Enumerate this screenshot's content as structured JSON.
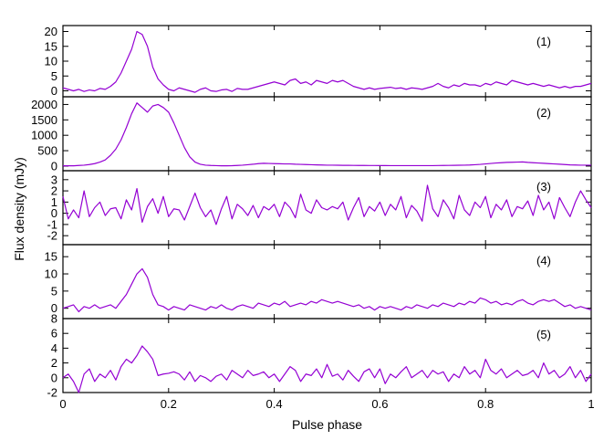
{
  "chart_data": {
    "type": "line",
    "xlabel": "Pulse phase",
    "ylabel": "Flux density (mJy)",
    "xlim": [
      0,
      1
    ],
    "x_ticks": [
      0,
      0.2,
      0.4,
      0.6,
      0.8,
      1
    ],
    "x_tick_labels": [
      "0",
      "0.2",
      "0.4",
      "0.6",
      "0.8",
      "1"
    ],
    "line_color": "#9400d3",
    "grid": false,
    "panels": [
      {
        "label": "(1)",
        "ylim": [
          -2,
          22
        ],
        "y_ticks": [
          0,
          5,
          10,
          15,
          20
        ],
        "y_tick_labels": [
          "0",
          "5",
          "10",
          "15",
          "20"
        ],
        "x": [
          0.0,
          0.01,
          0.02,
          0.03,
          0.04,
          0.05,
          0.06,
          0.07,
          0.08,
          0.09,
          0.1,
          0.11,
          0.12,
          0.13,
          0.14,
          0.15,
          0.16,
          0.17,
          0.18,
          0.19,
          0.2,
          0.21,
          0.22,
          0.23,
          0.24,
          0.25,
          0.26,
          0.27,
          0.28,
          0.29,
          0.3,
          0.31,
          0.32,
          0.33,
          0.34,
          0.35,
          0.36,
          0.37,
          0.38,
          0.39,
          0.4,
          0.41,
          0.42,
          0.43,
          0.44,
          0.45,
          0.46,
          0.47,
          0.48,
          0.49,
          0.5,
          0.51,
          0.52,
          0.53,
          0.54,
          0.55,
          0.56,
          0.57,
          0.58,
          0.59,
          0.6,
          0.61,
          0.62,
          0.63,
          0.64,
          0.65,
          0.66,
          0.67,
          0.68,
          0.69,
          0.7,
          0.71,
          0.72,
          0.73,
          0.74,
          0.75,
          0.76,
          0.77,
          0.78,
          0.79,
          0.8,
          0.81,
          0.82,
          0.83,
          0.84,
          0.85,
          0.86,
          0.87,
          0.88,
          0.89,
          0.9,
          0.91,
          0.92,
          0.93,
          0.94,
          0.95,
          0.96,
          0.97,
          0.98,
          0.99,
          1.0
        ],
        "y": [
          1.0,
          0.5,
          0.0,
          0.5,
          -0.2,
          0.3,
          0.0,
          0.8,
          0.5,
          1.5,
          3.0,
          6.0,
          10.0,
          14.0,
          20.0,
          19.0,
          15.0,
          8.0,
          4.0,
          2.0,
          0.5,
          0.0,
          1.0,
          0.5,
          0.0,
          -0.5,
          0.5,
          1.0,
          0.0,
          -0.2,
          0.3,
          0.5,
          -0.2,
          0.8,
          0.5,
          0.5,
          1.0,
          1.5,
          2.0,
          2.5,
          3.0,
          2.5,
          2.0,
          3.5,
          4.0,
          2.5,
          3.0,
          2.0,
          3.5,
          3.0,
          2.5,
          3.5,
          3.0,
          3.5,
          2.5,
          1.5,
          1.0,
          0.5,
          1.0,
          0.5,
          0.8,
          1.0,
          1.2,
          0.8,
          1.0,
          0.5,
          1.0,
          0.8,
          0.5,
          1.0,
          1.5,
          2.5,
          1.5,
          1.0,
          2.0,
          1.5,
          2.5,
          2.0,
          2.0,
          1.5,
          2.5,
          2.0,
          3.0,
          2.5,
          2.0,
          3.5,
          3.0,
          2.5,
          2.0,
          2.5,
          2.0,
          1.5,
          2.0,
          1.5,
          1.0,
          1.5,
          1.0,
          1.5,
          1.5,
          2.0,
          2.5
        ]
      },
      {
        "label": "(2)",
        "ylim": [
          -150,
          2250
        ],
        "y_ticks": [
          0,
          500,
          1000,
          1500,
          2000
        ],
        "y_tick_labels": [
          "0",
          "500",
          "1000",
          "1500",
          "2000"
        ],
        "x": [
          0.0,
          0.01,
          0.02,
          0.03,
          0.04,
          0.05,
          0.06,
          0.07,
          0.08,
          0.09,
          0.1,
          0.11,
          0.12,
          0.13,
          0.14,
          0.15,
          0.16,
          0.17,
          0.18,
          0.19,
          0.2,
          0.21,
          0.22,
          0.23,
          0.24,
          0.25,
          0.26,
          0.27,
          0.28,
          0.29,
          0.3,
          0.31,
          0.32,
          0.33,
          0.34,
          0.35,
          0.36,
          0.37,
          0.38,
          0.39,
          0.4,
          0.41,
          0.42,
          0.43,
          0.44,
          0.45,
          0.46,
          0.47,
          0.48,
          0.49,
          0.5,
          0.51,
          0.52,
          0.53,
          0.54,
          0.55,
          0.56,
          0.57,
          0.58,
          0.59,
          0.6,
          0.61,
          0.62,
          0.63,
          0.64,
          0.65,
          0.66,
          0.67,
          0.68,
          0.69,
          0.7,
          0.71,
          0.72,
          0.73,
          0.74,
          0.75,
          0.76,
          0.77,
          0.78,
          0.79,
          0.8,
          0.81,
          0.82,
          0.83,
          0.84,
          0.85,
          0.86,
          0.87,
          0.88,
          0.89,
          0.9,
          0.91,
          0.92,
          0.93,
          0.94,
          0.95,
          0.96,
          0.97,
          0.98,
          0.99,
          1.0
        ],
        "y": [
          10,
          10,
          10,
          20,
          30,
          50,
          80,
          130,
          200,
          350,
          550,
          850,
          1250,
          1700,
          2050,
          1900,
          1750,
          1950,
          2000,
          1900,
          1750,
          1400,
          1000,
          600,
          300,
          130,
          60,
          30,
          20,
          15,
          10,
          10,
          12,
          20,
          30,
          45,
          60,
          80,
          90,
          85,
          80,
          75,
          70,
          70,
          60,
          55,
          50,
          45,
          40,
          35,
          30,
          30,
          28,
          25,
          25,
          22,
          20,
          20,
          18,
          18,
          17,
          16,
          15,
          15,
          15,
          15,
          15,
          15,
          15,
          15,
          15,
          18,
          20,
          22,
          25,
          28,
          30,
          35,
          45,
          55,
          70,
          85,
          100,
          110,
          120,
          125,
          130,
          135,
          120,
          110,
          100,
          90,
          80,
          70,
          60,
          50,
          40,
          35,
          30,
          30,
          30
        ]
      },
      {
        "label": "(3)",
        "ylim": [
          -2.8,
          3.8
        ],
        "y_ticks": [
          -2,
          -1,
          0,
          1,
          2,
          3
        ],
        "y_tick_labels": [
          "-2",
          "-1",
          "0",
          "1",
          "2",
          "3"
        ],
        "x": [
          0.0,
          0.01,
          0.02,
          0.03,
          0.04,
          0.05,
          0.06,
          0.07,
          0.08,
          0.09,
          0.1,
          0.11,
          0.12,
          0.13,
          0.14,
          0.15,
          0.16,
          0.17,
          0.18,
          0.19,
          0.2,
          0.21,
          0.22,
          0.23,
          0.24,
          0.25,
          0.26,
          0.27,
          0.28,
          0.29,
          0.3,
          0.31,
          0.32,
          0.33,
          0.34,
          0.35,
          0.36,
          0.37,
          0.38,
          0.39,
          0.4,
          0.41,
          0.42,
          0.43,
          0.44,
          0.45,
          0.46,
          0.47,
          0.48,
          0.49,
          0.5,
          0.51,
          0.52,
          0.53,
          0.54,
          0.55,
          0.56,
          0.57,
          0.58,
          0.59,
          0.6,
          0.61,
          0.62,
          0.63,
          0.64,
          0.65,
          0.66,
          0.67,
          0.68,
          0.69,
          0.7,
          0.71,
          0.72,
          0.73,
          0.74,
          0.75,
          0.76,
          0.77,
          0.78,
          0.79,
          0.8,
          0.81,
          0.82,
          0.83,
          0.84,
          0.85,
          0.86,
          0.87,
          0.88,
          0.89,
          0.9,
          0.91,
          0.92,
          0.93,
          0.94,
          0.95,
          0.96,
          0.97,
          0.98,
          0.99,
          1.0
        ],
        "y": [
          1.5,
          -0.5,
          0.3,
          -0.4,
          2.0,
          -0.3,
          0.5,
          1.0,
          -0.2,
          0.4,
          0.5,
          -0.5,
          1.2,
          0.3,
          2.2,
          -0.8,
          0.6,
          1.3,
          0.0,
          1.5,
          -0.3,
          0.4,
          0.3,
          -0.6,
          0.6,
          1.8,
          0.5,
          -0.3,
          0.3,
          -1.0,
          0.4,
          1.5,
          -0.5,
          0.8,
          0.4,
          -0.2,
          0.7,
          -0.4,
          0.6,
          0.3,
          0.8,
          -0.3,
          1.0,
          0.5,
          -0.4,
          1.7,
          0.3,
          0.0,
          1.2,
          0.5,
          0.3,
          0.6,
          0.4,
          1.0,
          -0.6,
          0.5,
          1.4,
          -0.3,
          0.6,
          0.2,
          1.0,
          -0.2,
          0.8,
          0.3,
          1.5,
          -0.4,
          0.7,
          0.2,
          -0.7,
          2.5,
          0.4,
          -0.3,
          1.2,
          0.5,
          -0.5,
          1.6,
          0.3,
          -0.2,
          1.0,
          0.5,
          1.5,
          -0.4,
          0.8,
          0.3,
          1.2,
          -0.3,
          0.6,
          0.4,
          1.1,
          -0.2,
          1.6,
          0.3,
          1.0,
          -0.5,
          1.4,
          0.5,
          -0.3,
          1.0,
          2.0,
          1.2,
          0.5
        ]
      },
      {
        "label": "(4)",
        "ylim": [
          -3,
          18.5
        ],
        "y_ticks": [
          0,
          5,
          10,
          15
        ],
        "y_tick_labels": [
          "0",
          "5",
          "10",
          "15"
        ],
        "x": [
          0.0,
          0.01,
          0.02,
          0.03,
          0.04,
          0.05,
          0.06,
          0.07,
          0.08,
          0.09,
          0.1,
          0.11,
          0.12,
          0.13,
          0.14,
          0.15,
          0.16,
          0.17,
          0.18,
          0.19,
          0.2,
          0.21,
          0.22,
          0.23,
          0.24,
          0.25,
          0.26,
          0.27,
          0.28,
          0.29,
          0.3,
          0.31,
          0.32,
          0.33,
          0.34,
          0.35,
          0.36,
          0.37,
          0.38,
          0.39,
          0.4,
          0.41,
          0.42,
          0.43,
          0.44,
          0.45,
          0.46,
          0.47,
          0.48,
          0.49,
          0.5,
          0.51,
          0.52,
          0.53,
          0.54,
          0.55,
          0.56,
          0.57,
          0.58,
          0.59,
          0.6,
          0.61,
          0.62,
          0.63,
          0.64,
          0.65,
          0.66,
          0.67,
          0.68,
          0.69,
          0.7,
          0.71,
          0.72,
          0.73,
          0.74,
          0.75,
          0.76,
          0.77,
          0.78,
          0.79,
          0.8,
          0.81,
          0.82,
          0.83,
          0.84,
          0.85,
          0.86,
          0.87,
          0.88,
          0.89,
          0.9,
          0.91,
          0.92,
          0.93,
          0.94,
          0.95,
          0.96,
          0.97,
          0.98,
          0.99,
          1.0
        ],
        "y": [
          0.0,
          0.5,
          1.0,
          -1.0,
          0.5,
          0.0,
          1.0,
          0.0,
          0.5,
          1.0,
          0.0,
          2.0,
          4.0,
          7.0,
          10.0,
          11.5,
          9.0,
          4.0,
          1.0,
          0.5,
          -0.5,
          0.5,
          0.0,
          -0.5,
          1.0,
          0.5,
          0.0,
          -0.5,
          0.5,
          0.0,
          1.0,
          0.0,
          -0.5,
          0.5,
          1.0,
          0.5,
          0.0,
          1.5,
          1.0,
          0.5,
          1.5,
          1.0,
          2.0,
          0.5,
          1.0,
          1.5,
          1.0,
          2.0,
          1.5,
          2.5,
          2.0,
          1.5,
          2.0,
          1.5,
          1.0,
          0.5,
          1.0,
          0.0,
          0.5,
          -0.5,
          0.5,
          0.0,
          0.5,
          0.0,
          -0.5,
          0.5,
          0.0,
          1.0,
          0.5,
          0.0,
          1.0,
          0.5,
          1.5,
          1.0,
          0.5,
          1.5,
          1.0,
          2.0,
          1.5,
          3.0,
          2.5,
          1.5,
          2.0,
          1.0,
          1.5,
          1.0,
          2.0,
          2.5,
          1.5,
          1.0,
          2.0,
          2.5,
          2.0,
          2.5,
          1.5,
          0.5,
          1.0,
          0.0,
          0.5,
          0.0,
          -0.5
        ]
      },
      {
        "label": "(5)",
        "ylim": [
          -2,
          8
        ],
        "y_ticks": [
          -2,
          0,
          2,
          4,
          6,
          8
        ],
        "y_tick_labels": [
          "-2",
          "0",
          "2",
          "4",
          "6",
          "8"
        ],
        "x": [
          0.0,
          0.01,
          0.02,
          0.03,
          0.04,
          0.05,
          0.06,
          0.07,
          0.08,
          0.09,
          0.1,
          0.11,
          0.12,
          0.13,
          0.14,
          0.15,
          0.16,
          0.17,
          0.18,
          0.19,
          0.2,
          0.21,
          0.22,
          0.23,
          0.24,
          0.25,
          0.26,
          0.27,
          0.28,
          0.29,
          0.3,
          0.31,
          0.32,
          0.33,
          0.34,
          0.35,
          0.36,
          0.37,
          0.38,
          0.39,
          0.4,
          0.41,
          0.42,
          0.43,
          0.44,
          0.45,
          0.46,
          0.47,
          0.48,
          0.49,
          0.5,
          0.51,
          0.52,
          0.53,
          0.54,
          0.55,
          0.56,
          0.57,
          0.58,
          0.59,
          0.6,
          0.61,
          0.62,
          0.63,
          0.64,
          0.65,
          0.66,
          0.67,
          0.68,
          0.69,
          0.7,
          0.71,
          0.72,
          0.73,
          0.74,
          0.75,
          0.76,
          0.77,
          0.78,
          0.79,
          0.8,
          0.81,
          0.82,
          0.83,
          0.84,
          0.85,
          0.86,
          0.87,
          0.88,
          0.89,
          0.9,
          0.91,
          0.92,
          0.93,
          0.94,
          0.95,
          0.96,
          0.97,
          0.98,
          0.99,
          1.0
        ],
        "y": [
          0.0,
          0.5,
          -0.5,
          -2.0,
          0.5,
          1.2,
          -0.5,
          0.5,
          0.0,
          1.0,
          -0.3,
          1.5,
          2.5,
          2.0,
          3.0,
          4.3,
          3.5,
          2.5,
          0.3,
          0.5,
          0.6,
          0.8,
          0.5,
          -0.3,
          0.8,
          -0.5,
          0.3,
          0.0,
          -0.5,
          0.2,
          0.5,
          -0.3,
          1.0,
          0.5,
          0.0,
          1.0,
          0.3,
          0.5,
          0.8,
          0.0,
          0.5,
          -0.5,
          0.5,
          1.5,
          1.0,
          -0.5,
          0.5,
          0.3,
          1.2,
          0.0,
          1.8,
          0.2,
          0.5,
          -0.3,
          1.0,
          0.2,
          -0.5,
          0.8,
          1.2,
          0.0,
          1.2,
          -0.8,
          0.5,
          0.0,
          0.8,
          1.5,
          0.0,
          0.5,
          1.0,
          0.0,
          1.0,
          0.5,
          0.8,
          -0.5,
          0.5,
          0.0,
          1.5,
          0.5,
          1.0,
          0.0,
          2.5,
          1.0,
          0.5,
          1.2,
          0.0,
          0.5,
          1.0,
          0.3,
          0.5,
          1.0,
          0.0,
          2.0,
          0.5,
          1.0,
          0.0,
          0.5,
          1.5,
          0.0,
          1.0,
          -0.5,
          0.5
        ]
      }
    ]
  }
}
